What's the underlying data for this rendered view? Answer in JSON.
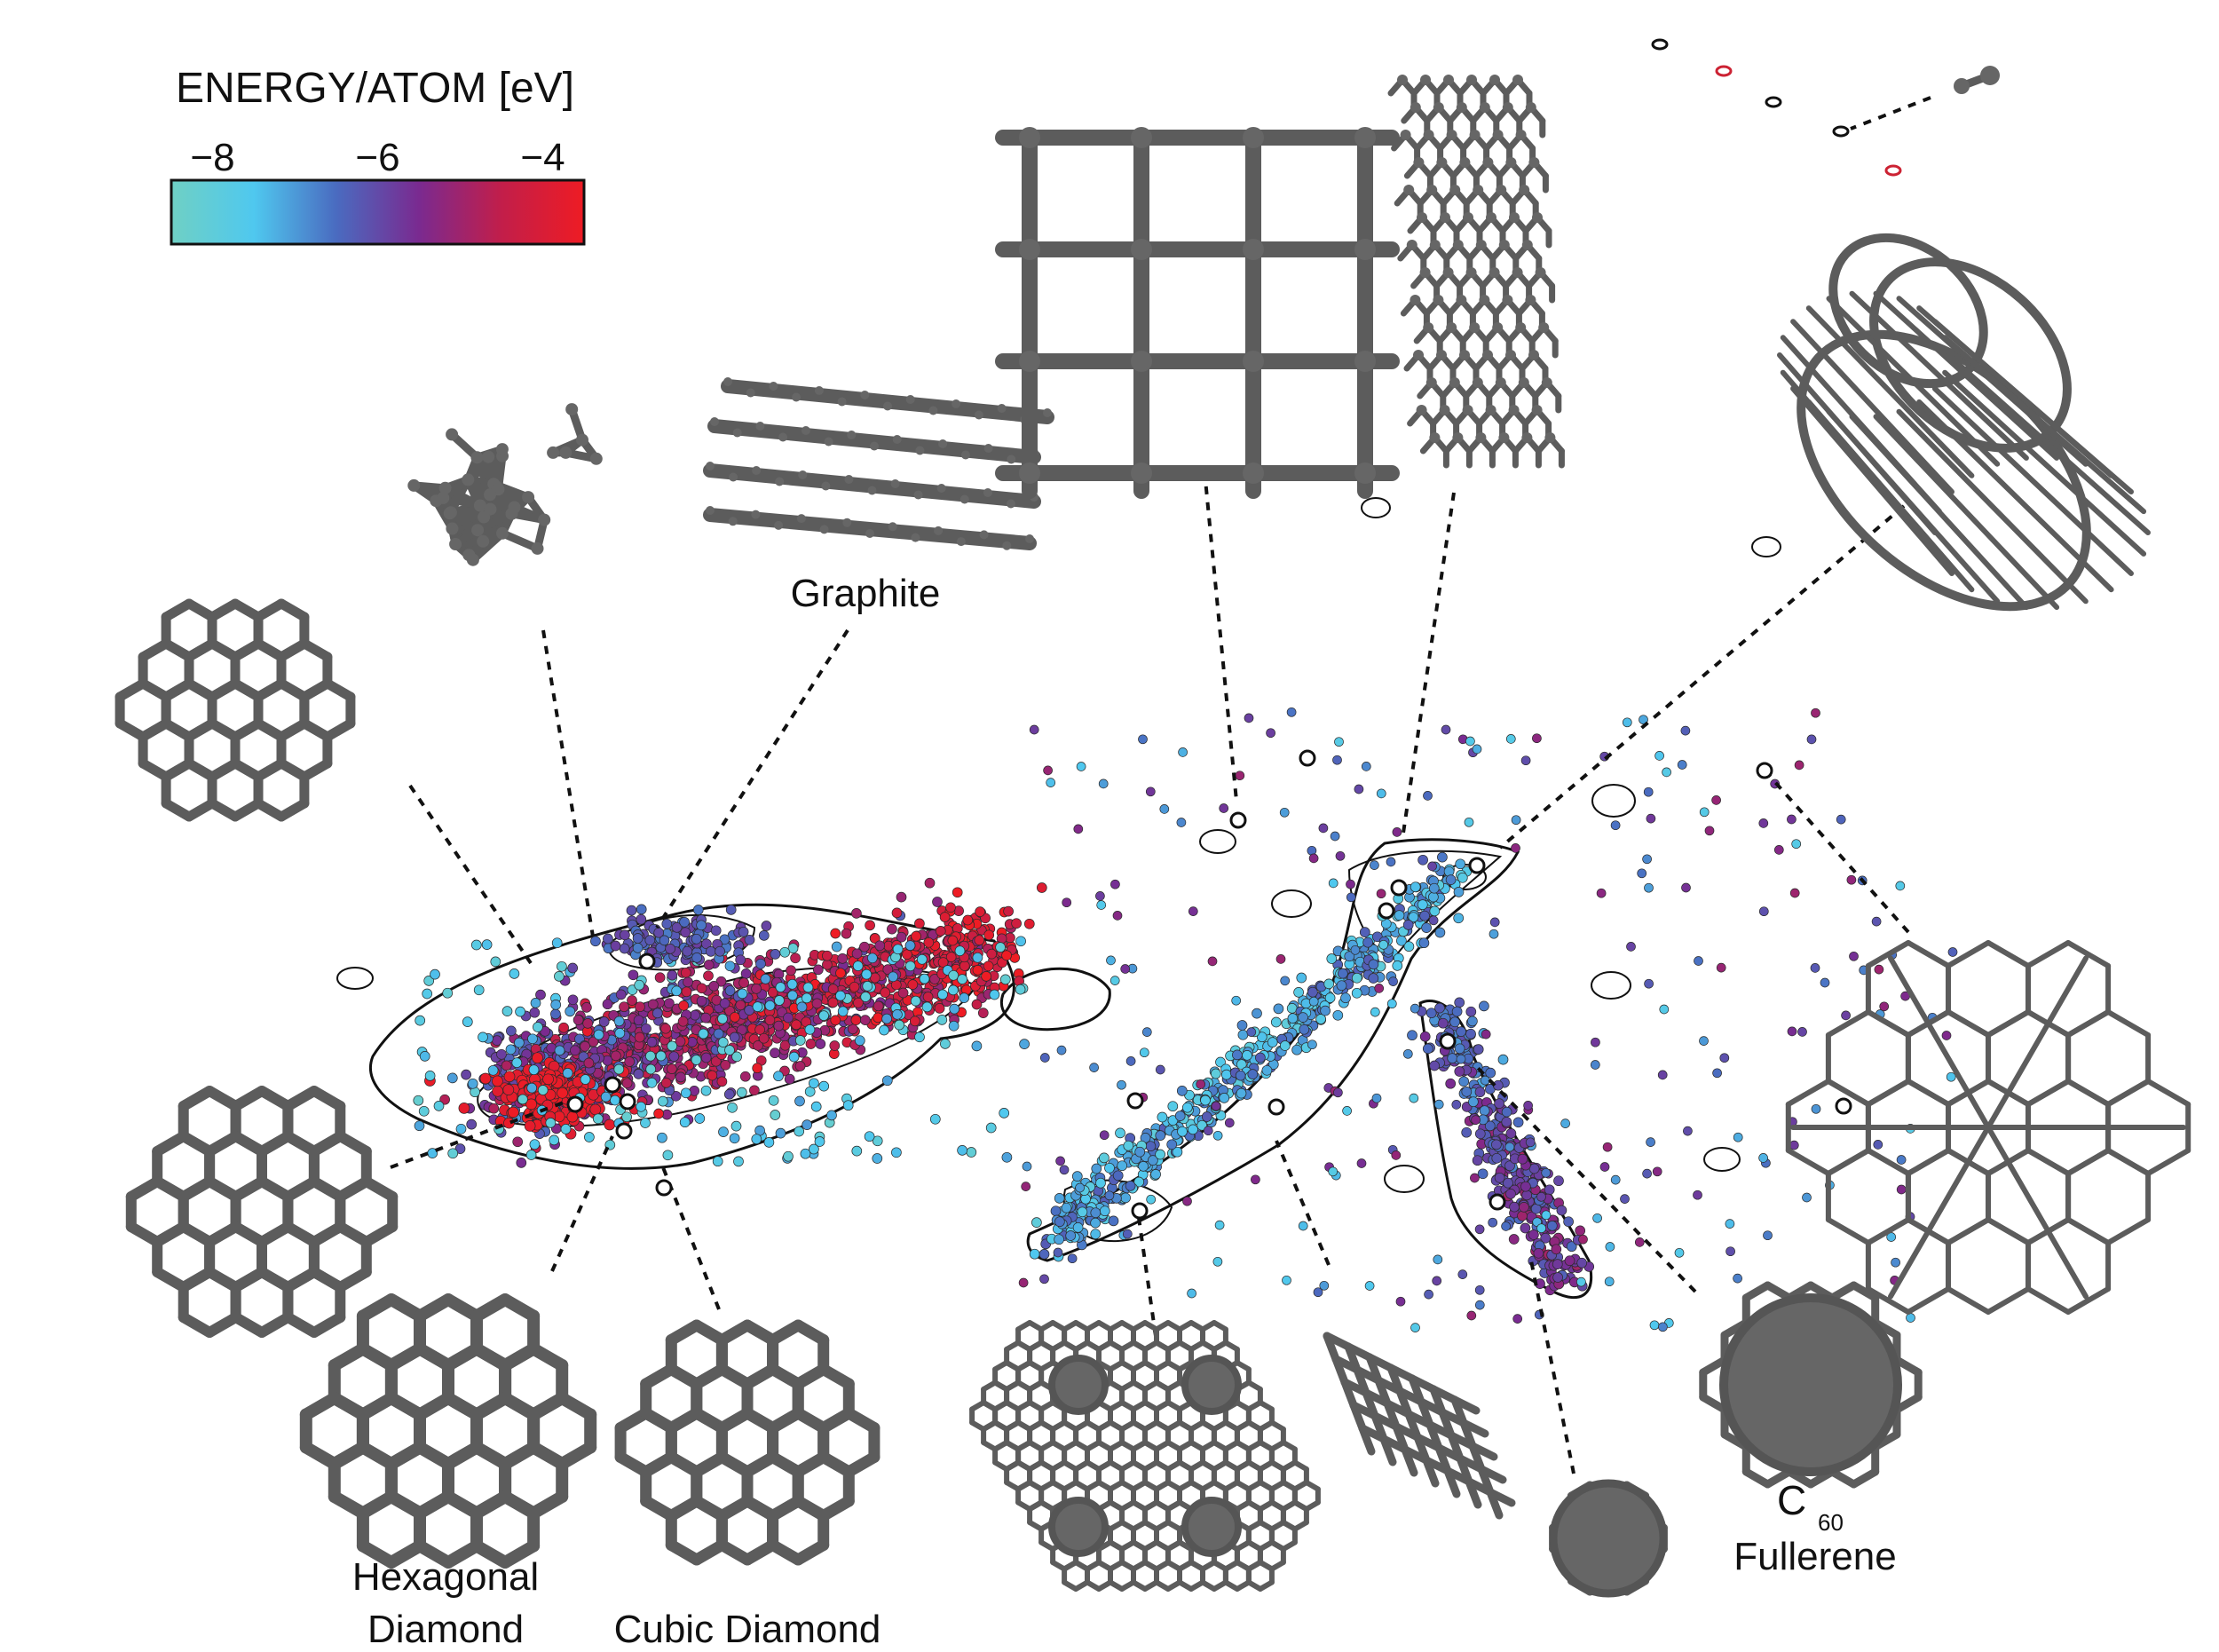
{
  "colorbar": {
    "title": "ENERGY/ATOM  [eV]",
    "ticks": [
      "−8",
      "−6",
      "−4"
    ],
    "tick_values": [
      -8,
      -6,
      -4
    ],
    "range": [
      -8.5,
      -3.5
    ],
    "colors": [
      "#6fd0c4",
      "#4fc8ef",
      "#4a6bc0",
      "#7a2a90",
      "#c21e4a",
      "#ee1c24"
    ]
  },
  "labels": {
    "graphite": "Graphite",
    "hexagonal_diamond_line1": "Hexagonal",
    "hexagonal_diamond_line2": "Diamond",
    "cubic_diamond": "Cubic Diamond",
    "c60_base": "C",
    "c60_subscript": "60",
    "fullerene": "Fullerene"
  },
  "structures": [
    {
      "name": "amorphous-cluster-icon"
    },
    {
      "name": "graphite-icon"
    },
    {
      "name": "cubic-framework-icon"
    },
    {
      "name": "nanotube-icon"
    },
    {
      "name": "nanotube-bundle-icon"
    },
    {
      "name": "clathrate-cluster-icon"
    },
    {
      "name": "diamond-block-icon"
    },
    {
      "name": "hexagonal-diamond-icon"
    },
    {
      "name": "cubic-diamond-icon"
    },
    {
      "name": "porous-carbon-icon"
    },
    {
      "name": "short-nanotube-icon"
    },
    {
      "name": "small-fullerene-icon"
    },
    {
      "name": "c60-fullerene-icon"
    },
    {
      "name": "honeycomb-lattice-icon"
    },
    {
      "name": "dimer-icon"
    }
  ]
}
